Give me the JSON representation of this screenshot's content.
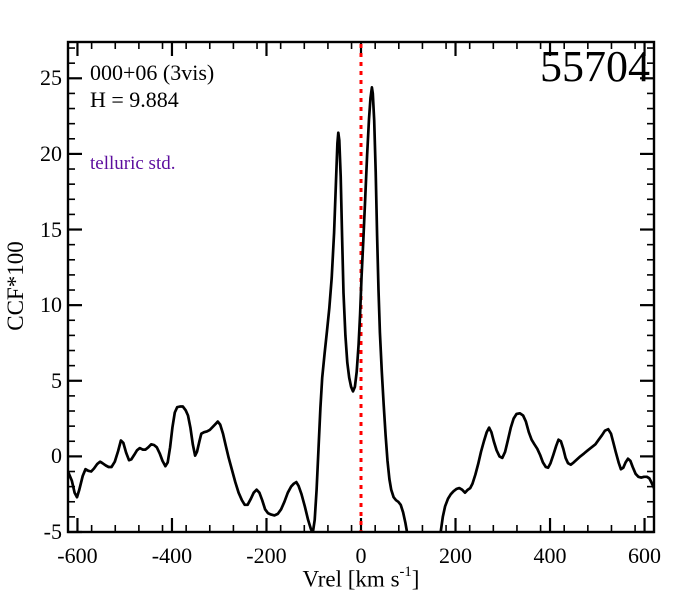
{
  "chart_data": {
    "type": "line",
    "title": "",
    "ylabel": "CCF*100",
    "xlabel_parts": {
      "pre": "Vrel [km s",
      "sup": "-1",
      "post": "]"
    },
    "xlim": [
      -620,
      620
    ],
    "ylim": [
      -5,
      27.4
    ],
    "x_major_ticks": [
      -600,
      -400,
      -200,
      0,
      200,
      400,
      600
    ],
    "x_tick_labels": [
      "-600",
      "-400",
      "-200",
      "0",
      "200",
      "400",
      "600"
    ],
    "x_minor_step": 50,
    "y_major_ticks": [
      -5,
      0,
      5,
      10,
      15,
      20,
      25
    ],
    "y_tick_labels": [
      "-5",
      "0",
      "5",
      "10",
      "15",
      "20",
      "25"
    ],
    "y_minor_step": 1,
    "grid": false,
    "legend": null,
    "frame_color": "#000000",
    "reference_line": {
      "x": 0,
      "color": "#ff0000",
      "style": "dotted"
    },
    "annotations": [
      {
        "id": "field",
        "text": "000+06 (3vis)",
        "color": "#000000"
      },
      {
        "id": "hmag",
        "text": "H = 9.884",
        "color": "#000000"
      },
      {
        "id": "telluric",
        "text": "telluric std.",
        "color": "#5c0d9e"
      },
      {
        "id": "epoch",
        "text": "55704",
        "color": "#000000"
      }
    ],
    "series": [
      {
        "name": "ccf-curve",
        "color": "#000000",
        "points": [
          [
            -620,
            -1.0
          ],
          [
            -612,
            -1.6
          ],
          [
            -606,
            -2.4
          ],
          [
            -601,
            -2.7
          ],
          [
            -596,
            -2.2
          ],
          [
            -589,
            -1.3
          ],
          [
            -583,
            -0.85
          ],
          [
            -577,
            -0.95
          ],
          [
            -571,
            -1.0
          ],
          [
            -565,
            -0.8
          ],
          [
            -558,
            -0.5
          ],
          [
            -552,
            -0.35
          ],
          [
            -547,
            -0.45
          ],
          [
            -540,
            -0.6
          ],
          [
            -534,
            -0.7
          ],
          [
            -528,
            -0.7
          ],
          [
            -521,
            -0.35
          ],
          [
            -514,
            0.35
          ],
          [
            -508,
            1.05
          ],
          [
            -503,
            0.9
          ],
          [
            -497,
            0.25
          ],
          [
            -491,
            -0.25
          ],
          [
            -486,
            -0.2
          ],
          [
            -480,
            0.1
          ],
          [
            -474,
            0.4
          ],
          [
            -468,
            0.55
          ],
          [
            -462,
            0.45
          ],
          [
            -456,
            0.45
          ],
          [
            -450,
            0.6
          ],
          [
            -444,
            0.8
          ],
          [
            -438,
            0.75
          ],
          [
            -432,
            0.6
          ],
          [
            -426,
            0.2
          ],
          [
            -420,
            -0.3
          ],
          [
            -414,
            -0.65
          ],
          [
            -409,
            -0.4
          ],
          [
            -404,
            0.6
          ],
          [
            -399,
            1.9
          ],
          [
            -394,
            2.9
          ],
          [
            -389,
            3.25
          ],
          [
            -383,
            3.3
          ],
          [
            -377,
            3.3
          ],
          [
            -371,
            3.05
          ],
          [
            -366,
            2.7
          ],
          [
            -361,
            1.9
          ],
          [
            -356,
            0.8
          ],
          [
            -351,
            0.05
          ],
          [
            -347,
            0.3
          ],
          [
            -342,
            1.0
          ],
          [
            -338,
            1.5
          ],
          [
            -332,
            1.6
          ],
          [
            -326,
            1.65
          ],
          [
            -320,
            1.75
          ],
          [
            -315,
            1.9
          ],
          [
            -309,
            2.1
          ],
          [
            -303,
            2.3
          ],
          [
            -298,
            2.1
          ],
          [
            -292,
            1.5
          ],
          [
            -286,
            0.7
          ],
          [
            -280,
            -0.1
          ],
          [
            -273,
            -0.9
          ],
          [
            -266,
            -1.7
          ],
          [
            -259,
            -2.4
          ],
          [
            -252,
            -2.9
          ],
          [
            -246,
            -3.2
          ],
          [
            -240,
            -3.2
          ],
          [
            -233,
            -2.8
          ],
          [
            -227,
            -2.4
          ],
          [
            -221,
            -2.2
          ],
          [
            -215,
            -2.4
          ],
          [
            -209,
            -2.9
          ],
          [
            -203,
            -3.5
          ],
          [
            -197,
            -3.75
          ],
          [
            -190,
            -3.85
          ],
          [
            -183,
            -3.9
          ],
          [
            -176,
            -3.8
          ],
          [
            -169,
            -3.5
          ],
          [
            -162,
            -3.0
          ],
          [
            -155,
            -2.4
          ],
          [
            -148,
            -2.0
          ],
          [
            -142,
            -1.8
          ],
          [
            -137,
            -1.7
          ],
          [
            -132,
            -1.95
          ],
          [
            -126,
            -2.5
          ],
          [
            -119,
            -3.3
          ],
          [
            -112,
            -4.2
          ],
          [
            -106,
            -4.8
          ],
          [
            -102,
            -5.05
          ],
          [
            -98,
            -4.2
          ],
          [
            -94,
            -2.2
          ],
          [
            -90,
            0.5
          ],
          [
            -86,
            3.2
          ],
          [
            -82,
            5.2
          ],
          [
            -77,
            6.8
          ],
          [
            -72,
            8.3
          ],
          [
            -67,
            9.8
          ],
          [
            -62,
            11.8
          ],
          [
            -57,
            14.8
          ],
          [
            -53,
            18.2
          ],
          [
            -50,
            20.7
          ],
          [
            -48,
            21.4
          ],
          [
            -46,
            20.9
          ],
          [
            -43,
            18.5
          ],
          [
            -40,
            14.5
          ],
          [
            -37,
            10.8
          ],
          [
            -33,
            8.0
          ],
          [
            -29,
            6.2
          ],
          [
            -25,
            5.2
          ],
          [
            -21,
            4.6
          ],
          [
            -17,
            4.3
          ],
          [
            -13,
            4.6
          ],
          [
            -9,
            5.6
          ],
          [
            -5,
            7.4
          ],
          [
            -2,
            9.4
          ],
          [
            1,
            11.8
          ],
          [
            5,
            14.4
          ],
          [
            9,
            17.2
          ],
          [
            13,
            19.9
          ],
          [
            17,
            22.3
          ],
          [
            20,
            23.7
          ],
          [
            23,
            24.4
          ],
          [
            25,
            24.0
          ],
          [
            28,
            22.2
          ],
          [
            31,
            18.8
          ],
          [
            34,
            14.6
          ],
          [
            37,
            11.0
          ],
          [
            40,
            8.2
          ],
          [
            44,
            5.6
          ],
          [
            48,
            3.4
          ],
          [
            52,
            1.4
          ],
          [
            56,
            -0.3
          ],
          [
            60,
            -1.5
          ],
          [
            64,
            -2.2
          ],
          [
            69,
            -2.7
          ],
          [
            74,
            -2.9
          ],
          [
            79,
            -3.0
          ],
          [
            84,
            -3.2
          ],
          [
            89,
            -3.7
          ],
          [
            94,
            -4.4
          ],
          [
            99,
            -5.3
          ],
          [
            104,
            -6.3
          ],
          [
            110,
            -7.2
          ],
          [
            158,
            -7.2
          ],
          [
            164,
            -6.0
          ],
          [
            169,
            -4.9
          ],
          [
            173,
            -4.0
          ],
          [
            178,
            -3.3
          ],
          [
            184,
            -2.8
          ],
          [
            190,
            -2.5
          ],
          [
            196,
            -2.3
          ],
          [
            202,
            -2.15
          ],
          [
            208,
            -2.1
          ],
          [
            214,
            -2.2
          ],
          [
            220,
            -2.4
          ],
          [
            226,
            -2.2
          ],
          [
            231,
            -2.1
          ],
          [
            236,
            -1.8
          ],
          [
            242,
            -1.2
          ],
          [
            248,
            -0.5
          ],
          [
            254,
            0.3
          ],
          [
            260,
            1.0
          ],
          [
            266,
            1.6
          ],
          [
            271,
            1.9
          ],
          [
            276,
            1.6
          ],
          [
            281,
            1.0
          ],
          [
            287,
            0.4
          ],
          [
            293,
            0.0
          ],
          [
            299,
            -0.1
          ],
          [
            305,
            0.3
          ],
          [
            311,
            1.1
          ],
          [
            317,
            1.9
          ],
          [
            323,
            2.5
          ],
          [
            329,
            2.8
          ],
          [
            336,
            2.85
          ],
          [
            343,
            2.7
          ],
          [
            349,
            2.3
          ],
          [
            355,
            1.6
          ],
          [
            361,
            1.1
          ],
          [
            367,
            0.8
          ],
          [
            373,
            0.5
          ],
          [
            379,
            0.1
          ],
          [
            385,
            -0.4
          ],
          [
            391,
            -0.7
          ],
          [
            396,
            -0.75
          ],
          [
            401,
            -0.45
          ],
          [
            407,
            0.1
          ],
          [
            413,
            0.7
          ],
          [
            418,
            1.1
          ],
          [
            423,
            1.0
          ],
          [
            428,
            0.5
          ],
          [
            433,
            -0.1
          ],
          [
            438,
            -0.45
          ],
          [
            444,
            -0.55
          ],
          [
            450,
            -0.4
          ],
          [
            457,
            -0.2
          ],
          [
            464,
            0.0
          ],
          [
            472,
            0.2
          ],
          [
            480,
            0.4
          ],
          [
            488,
            0.6
          ],
          [
            496,
            0.8
          ],
          [
            503,
            1.1
          ],
          [
            510,
            1.4
          ],
          [
            516,
            1.7
          ],
          [
            523,
            1.8
          ],
          [
            529,
            1.5
          ],
          [
            534,
            0.9
          ],
          [
            539,
            0.3
          ],
          [
            545,
            -0.4
          ],
          [
            550,
            -0.85
          ],
          [
            555,
            -0.75
          ],
          [
            560,
            -0.4
          ],
          [
            565,
            -0.15
          ],
          [
            570,
            -0.3
          ],
          [
            575,
            -0.7
          ],
          [
            581,
            -1.15
          ],
          [
            587,
            -1.35
          ],
          [
            593,
            -1.4
          ],
          [
            599,
            -1.35
          ],
          [
            605,
            -1.35
          ],
          [
            610,
            -1.45
          ],
          [
            615,
            -1.75
          ],
          [
            620,
            -2.1
          ]
        ]
      }
    ]
  }
}
